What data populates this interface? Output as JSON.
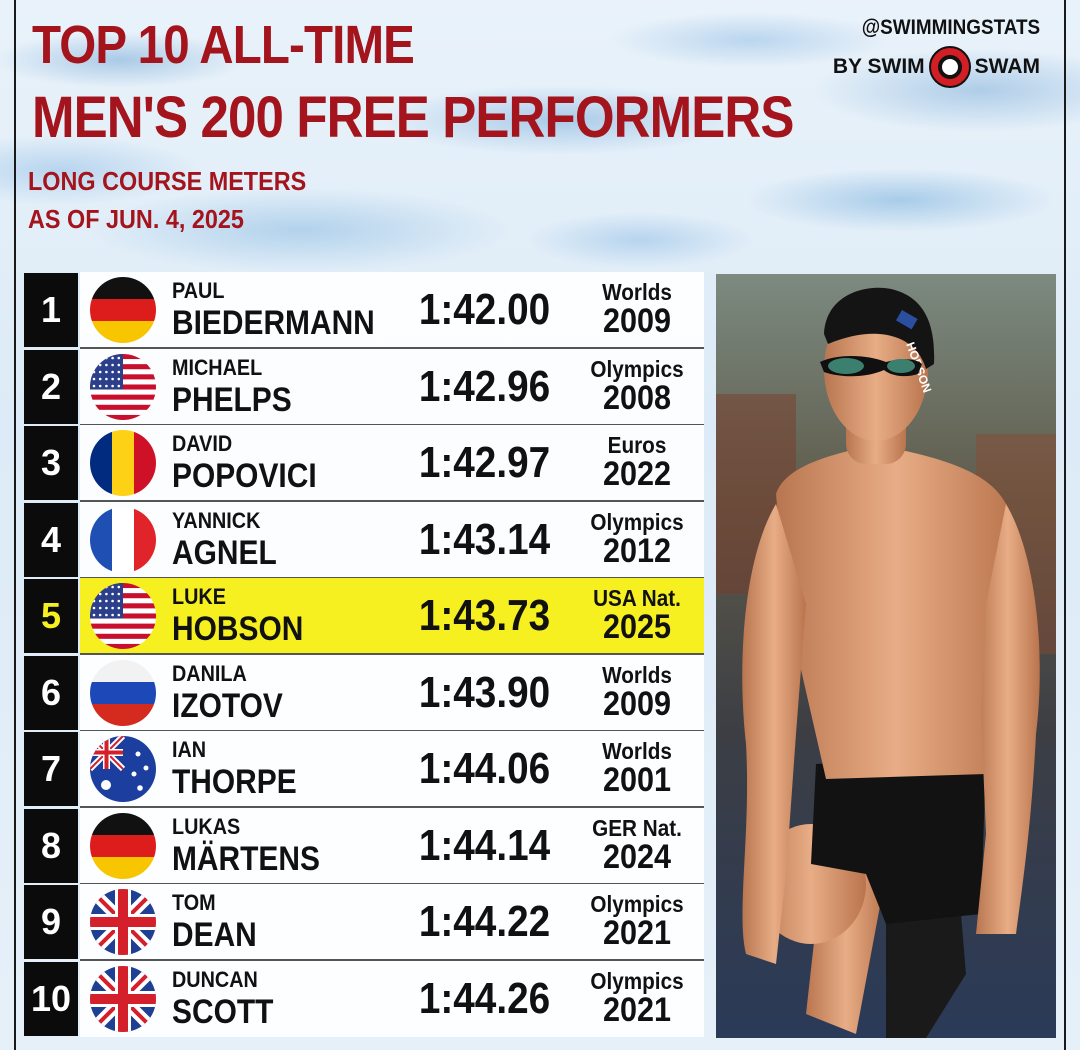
{
  "header": {
    "title_line1": "TOP 10 ALL-TIME",
    "title_line2": "MEN'S 200 FREE PERFORMERS",
    "subtitle_line1": "LONG COURSE METERS",
    "subtitle_line2": "AS OF JUN. 4, 2025"
  },
  "brand": {
    "handle": "@SWIMMINGSTATS",
    "by_left": "BY SWIM",
    "by_right": "SWAM"
  },
  "colors": {
    "title": "#a3141c",
    "highlight": "#f6f021",
    "rank_bg": "#0b0b0b"
  },
  "rows": [
    {
      "rank": "1",
      "first": "PAUL",
      "last": "BIEDERMANN",
      "time": "1:42.00",
      "meet": "Worlds",
      "year": "2009",
      "flag": "germany-flag-icon"
    },
    {
      "rank": "2",
      "first": "MICHAEL",
      "last": "PHELPS",
      "time": "1:42.96",
      "meet": "Olympics",
      "year": "2008",
      "flag": "usa-flag-icon"
    },
    {
      "rank": "3",
      "first": "DAVID",
      "last": "POPOVICI",
      "time": "1:42.97",
      "meet": "Euros",
      "year": "2022",
      "flag": "romania-flag-icon"
    },
    {
      "rank": "4",
      "first": "YANNICK",
      "last": "AGNEL",
      "time": "1:43.14",
      "meet": "Olympics",
      "year": "2012",
      "flag": "france-flag-icon"
    },
    {
      "rank": "5",
      "first": "LUKE",
      "last": "HOBSON",
      "time": "1:43.73",
      "meet": "USA Nat.",
      "year": "2025",
      "flag": "usa-flag-icon",
      "highlight": true
    },
    {
      "rank": "6",
      "first": "DANILA",
      "last": "IZOTOV",
      "time": "1:43.90",
      "meet": "Worlds",
      "year": "2009",
      "flag": "russia-flag-icon"
    },
    {
      "rank": "7",
      "first": "IAN",
      "last": "THORPE",
      "time": "1:44.06",
      "meet": "Worlds",
      "year": "2001",
      "flag": "australia-flag-icon"
    },
    {
      "rank": "8",
      "first": "LUKAS",
      "last": "MÄRTENS",
      "time": "1:44.14",
      "meet": "GER Nat.",
      "year": "2024",
      "flag": "germany-flag-icon"
    },
    {
      "rank": "9",
      "first": "TOM",
      "last": "DEAN",
      "time": "1:44.22",
      "meet": "Olympics",
      "year": "2021",
      "flag": "uk-flag-icon"
    },
    {
      "rank": "10",
      "first": "DUNCAN",
      "last": "SCOTT",
      "time": "1:44.26",
      "meet": "Olympics",
      "year": "2021",
      "flag": "uk-flag-icon"
    }
  ],
  "photo": {
    "cap_text": "HOBSON"
  }
}
